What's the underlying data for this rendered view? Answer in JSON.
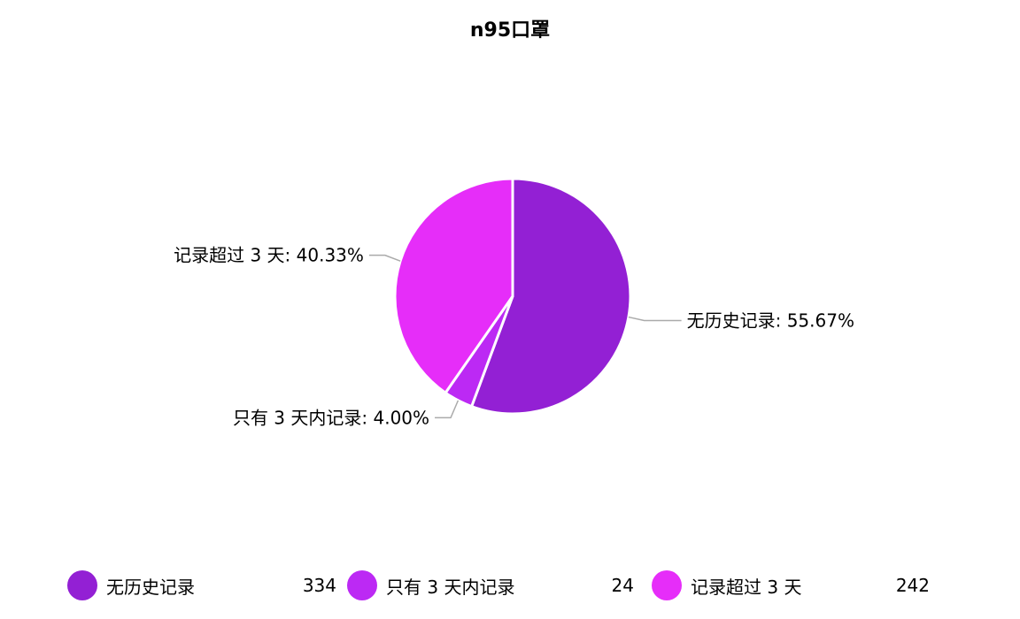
{
  "chart_data": {
    "type": "pie",
    "title": "n95口罩",
    "slices": [
      {
        "label": "无历史记录",
        "value": 334,
        "percent_label": "无历史记录: 55.67%",
        "color": "#9320d4"
      },
      {
        "label": "只有 3 天内记录",
        "value": 24,
        "percent_label": "只有 3 天内记录: 4.00%",
        "color": "#bc29f4"
      },
      {
        "label": "记录超过 3 天",
        "value": 242,
        "percent_label": "记录超过 3 天: 40.33%",
        "color": "#e62df9"
      }
    ],
    "legend_position": "bottom"
  }
}
